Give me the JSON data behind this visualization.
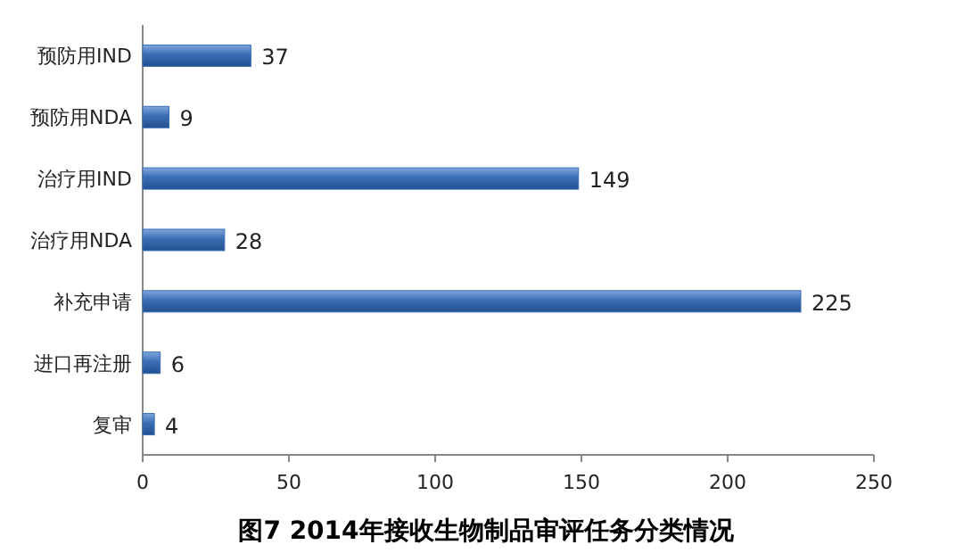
{
  "chart_data": {
    "type": "bar",
    "orientation": "horizontal",
    "title": "图7 2014年接收生物制品审评任务分类情况",
    "categories": [
      "预防用IND",
      "预防用NDA",
      "治疗用IND",
      "治疗用NDA",
      "补充申请",
      "进口再注册",
      "复审"
    ],
    "values": [
      37,
      9,
      149,
      28,
      225,
      6,
      4
    ],
    "color": "#3a6db5",
    "data_labels": true,
    "xlim": [
      0,
      250
    ],
    "xticks": [
      0,
      50,
      100,
      150,
      200,
      250
    ],
    "grid": false
  }
}
